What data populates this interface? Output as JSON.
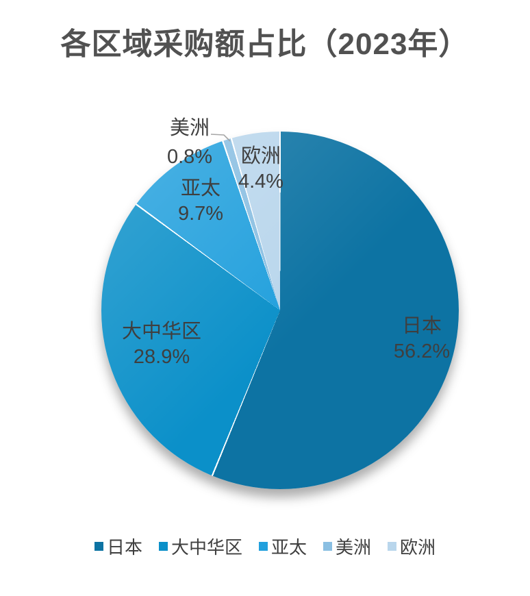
{
  "page": {
    "background": "#ffffff"
  },
  "chart_data": {
    "type": "pie",
    "title": "各区域采购额占比（2023年）",
    "unit": "%",
    "start_angle_deg": 0,
    "direction": "clockwise",
    "legend_position": "bottom",
    "grid": false,
    "slices": [
      {
        "name": "日本",
        "value": 56.2,
        "pct_label": "56.2%",
        "color": "#0d73a3",
        "label_placement": "inside"
      },
      {
        "name": "大中华区",
        "value": 28.9,
        "pct_label": "28.9%",
        "color": "#0b90c9",
        "label_placement": "inside"
      },
      {
        "name": "亚太",
        "value": 9.7,
        "pct_label": "9.7%",
        "color": "#22a0dd",
        "label_placement": "inside"
      },
      {
        "name": "美洲",
        "value": 0.8,
        "pct_label": "0.8%",
        "color": "#8abfe2",
        "label_placement": "outside-with-leader-line"
      },
      {
        "name": "欧洲",
        "value": 4.4,
        "pct_label": "4.4%",
        "color": "#b9d6ec",
        "label_placement": "inside"
      }
    ],
    "colors": {
      "title": "#515151",
      "data_label": "#3f3f3f",
      "leader_line": "#a6a6a6",
      "slice_border": "#ffffff",
      "background": "#ffffff"
    }
  }
}
